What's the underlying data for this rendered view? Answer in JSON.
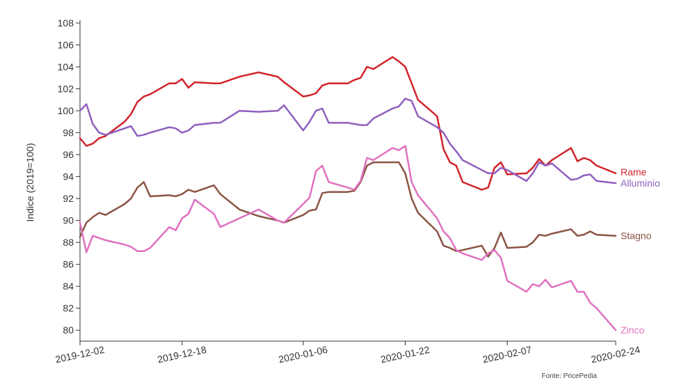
{
  "chart_data": {
    "type": "line",
    "title": "",
    "xlabel": "",
    "ylabel": "Indice (2019=100)",
    "ylim": [
      79,
      108
    ],
    "yticks": [
      80,
      82,
      84,
      86,
      88,
      90,
      92,
      94,
      96,
      98,
      100,
      102,
      104,
      106,
      108
    ],
    "xlim": [
      "2019-12-02",
      "2020-02-24"
    ],
    "xticks": [
      "2019-12-02",
      "2019-12-18",
      "2020-01-06",
      "2020-01-22",
      "2020-02-07",
      "2020-02-24"
    ],
    "grid": false,
    "legend": "none",
    "source": "Fonte: PricePedia",
    "series": [
      {
        "name": "Rame",
        "color": "#d0232a",
        "points": [
          [
            "2019-12-02",
            97.5
          ],
          [
            "2019-12-03",
            96.8
          ],
          [
            "2019-12-04",
            97.0
          ],
          [
            "2019-12-05",
            97.5
          ],
          [
            "2019-12-06",
            97.7
          ],
          [
            "2019-12-09",
            99.0
          ],
          [
            "2019-12-10",
            99.7
          ],
          [
            "2019-12-11",
            100.8
          ],
          [
            "2019-12-12",
            101.3
          ],
          [
            "2019-12-13",
            101.5
          ],
          [
            "2019-12-16",
            102.5
          ],
          [
            "2019-12-17",
            102.5
          ],
          [
            "2019-12-18",
            102.9
          ],
          [
            "2019-12-19",
            102.1
          ],
          [
            "2019-12-20",
            102.6
          ],
          [
            "2019-12-23",
            102.5
          ],
          [
            "2019-12-24",
            102.5
          ],
          [
            "2019-12-27",
            103.1
          ],
          [
            "2019-12-30",
            103.5
          ],
          [
            "2020-01-02",
            103.1
          ],
          [
            "2020-01-03",
            102.6
          ],
          [
            "2020-01-06",
            101.3
          ],
          [
            "2020-01-07",
            101.4
          ],
          [
            "2020-01-08",
            101.6
          ],
          [
            "2020-01-09",
            102.3
          ],
          [
            "2020-01-10",
            102.5
          ],
          [
            "2020-01-13",
            102.5
          ],
          [
            "2020-01-14",
            102.8
          ],
          [
            "2020-01-15",
            103.0
          ],
          [
            "2020-01-16",
            104.0
          ],
          [
            "2020-01-17",
            103.8
          ],
          [
            "2020-01-20",
            104.9
          ],
          [
            "2020-01-21",
            104.5
          ],
          [
            "2020-01-22",
            104.0
          ],
          [
            "2020-01-23",
            102.5
          ],
          [
            "2020-01-24",
            101.0
          ],
          [
            "2020-01-27",
            99.5
          ],
          [
            "2020-01-28",
            96.5
          ],
          [
            "2020-01-29",
            95.3
          ],
          [
            "2020-01-30",
            95.0
          ],
          [
            "2020-01-31",
            93.5
          ],
          [
            "2020-02-03",
            92.8
          ],
          [
            "2020-02-04",
            93.0
          ],
          [
            "2020-02-05",
            94.8
          ],
          [
            "2020-02-06",
            95.3
          ],
          [
            "2020-02-07",
            94.2
          ],
          [
            "2020-02-10",
            94.3
          ],
          [
            "2020-02-11",
            94.8
          ],
          [
            "2020-02-12",
            95.6
          ],
          [
            "2020-02-13",
            95.0
          ],
          [
            "2020-02-14",
            95.5
          ],
          [
            "2020-02-17",
            96.6
          ],
          [
            "2020-02-18",
            95.4
          ],
          [
            "2020-02-19",
            95.7
          ],
          [
            "2020-02-20",
            95.5
          ],
          [
            "2020-02-21",
            95.0
          ],
          [
            "2020-02-24",
            94.3
          ]
        ]
      },
      {
        "name": "Alluminio",
        "color": "#8f5fbf",
        "points": [
          [
            "2019-12-02",
            100.0
          ],
          [
            "2019-12-03",
            100.6
          ],
          [
            "2019-12-04",
            98.8
          ],
          [
            "2019-12-05",
            98.0
          ],
          [
            "2019-12-06",
            97.8
          ],
          [
            "2019-12-09",
            98.4
          ],
          [
            "2019-12-10",
            98.6
          ],
          [
            "2019-12-11",
            97.7
          ],
          [
            "2019-12-12",
            97.8
          ],
          [
            "2019-12-13",
            98.0
          ],
          [
            "2019-12-16",
            98.5
          ],
          [
            "2019-12-17",
            98.4
          ],
          [
            "2019-12-18",
            98.0
          ],
          [
            "2019-12-19",
            98.2
          ],
          [
            "2019-12-20",
            98.7
          ],
          [
            "2019-12-23",
            98.9
          ],
          [
            "2019-12-24",
            98.9
          ],
          [
            "2019-12-27",
            100.0
          ],
          [
            "2019-12-30",
            99.9
          ],
          [
            "2020-01-02",
            100.0
          ],
          [
            "2020-01-03",
            100.5
          ],
          [
            "2020-01-06",
            98.2
          ],
          [
            "2020-01-07",
            99.0
          ],
          [
            "2020-01-08",
            100.0
          ],
          [
            "2020-01-09",
            100.2
          ],
          [
            "2020-01-10",
            98.9
          ],
          [
            "2020-01-13",
            98.9
          ],
          [
            "2020-01-14",
            98.8
          ],
          [
            "2020-01-15",
            98.7
          ],
          [
            "2020-01-16",
            98.7
          ],
          [
            "2020-01-17",
            99.3
          ],
          [
            "2020-01-20",
            100.2
          ],
          [
            "2020-01-21",
            100.4
          ],
          [
            "2020-01-22",
            101.1
          ],
          [
            "2020-01-23",
            100.9
          ],
          [
            "2020-01-24",
            99.5
          ],
          [
            "2020-01-27",
            98.5
          ],
          [
            "2020-01-28",
            98.0
          ],
          [
            "2020-01-29",
            97.0
          ],
          [
            "2020-01-30",
            96.3
          ],
          [
            "2020-01-31",
            95.5
          ],
          [
            "2020-02-03",
            94.6
          ],
          [
            "2020-02-04",
            94.3
          ],
          [
            "2020-02-05",
            94.3
          ],
          [
            "2020-02-06",
            94.8
          ],
          [
            "2020-02-07",
            94.6
          ],
          [
            "2020-02-10",
            93.6
          ],
          [
            "2020-02-11",
            94.3
          ],
          [
            "2020-02-12",
            95.3
          ],
          [
            "2020-02-13",
            95.0
          ],
          [
            "2020-02-14",
            95.2
          ],
          [
            "2020-02-17",
            93.7
          ],
          [
            "2020-02-18",
            93.8
          ],
          [
            "2020-02-19",
            94.1
          ],
          [
            "2020-02-20",
            94.2
          ],
          [
            "2020-02-21",
            93.6
          ],
          [
            "2020-02-24",
            93.4
          ]
        ]
      },
      {
        "name": "Stagno",
        "color": "#8b5344",
        "points": [
          [
            "2019-12-02",
            88.5
          ],
          [
            "2019-12-03",
            89.8
          ],
          [
            "2019-12-04",
            90.3
          ],
          [
            "2019-12-05",
            90.7
          ],
          [
            "2019-12-06",
            90.5
          ],
          [
            "2019-12-09",
            91.5
          ],
          [
            "2019-12-10",
            92.0
          ],
          [
            "2019-12-11",
            93.0
          ],
          [
            "2019-12-12",
            93.5
          ],
          [
            "2019-12-13",
            92.2
          ],
          [
            "2019-12-16",
            92.3
          ],
          [
            "2019-12-17",
            92.2
          ],
          [
            "2019-12-18",
            92.4
          ],
          [
            "2019-12-19",
            92.8
          ],
          [
            "2019-12-20",
            92.6
          ],
          [
            "2019-12-23",
            93.2
          ],
          [
            "2019-12-24",
            92.4
          ],
          [
            "2019-12-27",
            91.0
          ],
          [
            "2019-12-30",
            90.4
          ],
          [
            "2020-01-02",
            90.0
          ],
          [
            "2020-01-03",
            89.8
          ],
          [
            "2020-01-06",
            90.5
          ],
          [
            "2020-01-07",
            90.9
          ],
          [
            "2020-01-08",
            91.0
          ],
          [
            "2020-01-09",
            92.5
          ],
          [
            "2020-01-10",
            92.6
          ],
          [
            "2020-01-13",
            92.6
          ],
          [
            "2020-01-14",
            92.7
          ],
          [
            "2020-01-15",
            93.5
          ],
          [
            "2020-01-16",
            95.0
          ],
          [
            "2020-01-17",
            95.3
          ],
          [
            "2020-01-20",
            95.3
          ],
          [
            "2020-01-21",
            95.3
          ],
          [
            "2020-01-22",
            94.3
          ],
          [
            "2020-01-23",
            92.0
          ],
          [
            "2020-01-24",
            90.7
          ],
          [
            "2020-01-27",
            89.0
          ],
          [
            "2020-01-28",
            87.7
          ],
          [
            "2020-01-29",
            87.5
          ],
          [
            "2020-01-30",
            87.2
          ],
          [
            "2020-01-31",
            87.3
          ],
          [
            "2020-02-03",
            87.7
          ],
          [
            "2020-02-04",
            86.7
          ],
          [
            "2020-02-05",
            87.5
          ],
          [
            "2020-02-06",
            88.9
          ],
          [
            "2020-02-07",
            87.5
          ],
          [
            "2020-02-10",
            87.6
          ],
          [
            "2020-02-11",
            88.0
          ],
          [
            "2020-02-12",
            88.7
          ],
          [
            "2020-02-13",
            88.6
          ],
          [
            "2020-02-14",
            88.8
          ],
          [
            "2020-02-17",
            89.2
          ],
          [
            "2020-02-18",
            88.6
          ],
          [
            "2020-02-19",
            88.7
          ],
          [
            "2020-02-20",
            89.0
          ],
          [
            "2020-02-21",
            88.7
          ],
          [
            "2020-02-24",
            88.6
          ]
        ]
      },
      {
        "name": "Zinco",
        "color": "#e070c0",
        "points": [
          [
            "2019-12-02",
            89.8
          ],
          [
            "2019-12-03",
            87.1
          ],
          [
            "2019-12-04",
            88.6
          ],
          [
            "2019-12-05",
            88.4
          ],
          [
            "2019-12-06",
            88.2
          ],
          [
            "2019-12-09",
            87.8
          ],
          [
            "2019-12-10",
            87.6
          ],
          [
            "2019-12-11",
            87.2
          ],
          [
            "2019-12-12",
            87.2
          ],
          [
            "2019-12-13",
            87.5
          ],
          [
            "2019-12-16",
            89.4
          ],
          [
            "2019-12-17",
            89.1
          ],
          [
            "2019-12-18",
            90.2
          ],
          [
            "2019-12-19",
            90.6
          ],
          [
            "2019-12-20",
            91.9
          ],
          [
            "2019-12-23",
            90.6
          ],
          [
            "2019-12-24",
            89.4
          ],
          [
            "2019-12-27",
            90.2
          ],
          [
            "2019-12-30",
            91.0
          ],
          [
            "2020-01-02",
            90.0
          ],
          [
            "2020-01-03",
            89.8
          ],
          [
            "2020-01-06",
            91.5
          ],
          [
            "2020-01-07",
            92.1
          ],
          [
            "2020-01-08",
            94.5
          ],
          [
            "2020-01-09",
            95.0
          ],
          [
            "2020-01-10",
            93.5
          ],
          [
            "2020-01-13",
            93.0
          ],
          [
            "2020-01-14",
            92.8
          ],
          [
            "2020-01-15",
            93.6
          ],
          [
            "2020-01-16",
            95.7
          ],
          [
            "2020-01-17",
            95.5
          ],
          [
            "2020-01-20",
            96.6
          ],
          [
            "2020-01-21",
            96.4
          ],
          [
            "2020-01-22",
            96.8
          ],
          [
            "2020-01-23",
            93.5
          ],
          [
            "2020-01-24",
            92.3
          ],
          [
            "2020-01-27",
            90.2
          ],
          [
            "2020-01-28",
            89.0
          ],
          [
            "2020-01-29",
            88.4
          ],
          [
            "2020-01-30",
            87.3
          ],
          [
            "2020-01-31",
            87.0
          ],
          [
            "2020-02-03",
            86.4
          ],
          [
            "2020-02-04",
            87.0
          ],
          [
            "2020-02-05",
            87.3
          ],
          [
            "2020-02-06",
            86.6
          ],
          [
            "2020-02-07",
            84.5
          ],
          [
            "2020-02-10",
            83.5
          ],
          [
            "2020-02-11",
            84.2
          ],
          [
            "2020-02-12",
            84.0
          ],
          [
            "2020-02-13",
            84.6
          ],
          [
            "2020-02-14",
            83.9
          ],
          [
            "2020-02-17",
            84.5
          ],
          [
            "2020-02-18",
            83.5
          ],
          [
            "2020-02-19",
            83.5
          ],
          [
            "2020-02-20",
            82.5
          ],
          [
            "2020-02-21",
            82.0
          ],
          [
            "2020-02-24",
            80.0
          ]
        ]
      }
    ]
  }
}
